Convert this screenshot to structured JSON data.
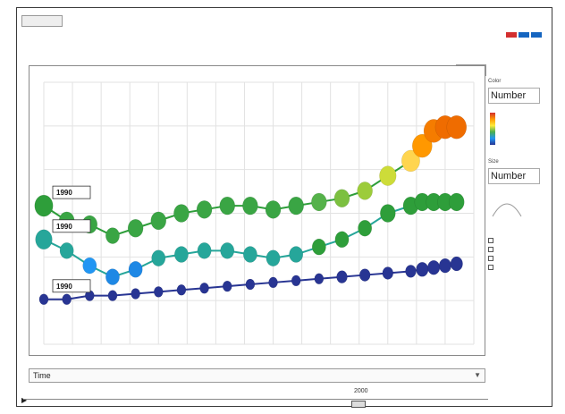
{
  "app": {
    "top_button": "",
    "title_arabic": "",
    "tools_button": "",
    "flag_colors": [
      "#d32f2f",
      "#1565c0",
      "#1565c0"
    ]
  },
  "side_panel": {
    "color_label": "Color",
    "color_value": "Number",
    "size_label": "Size",
    "size_value": "Number",
    "legend_high": "",
    "legend_mid": "",
    "checkboxes": []
  },
  "time_control": {
    "x_axis_select": "Time",
    "current_year": "2000"
  },
  "chart_data": {
    "type": "scatter",
    "title": "",
    "xlabel": "",
    "ylabel": "",
    "x_ticks": [
      "",
      "",
      "",
      "",
      "",
      "",
      "",
      "",
      "",
      "",
      "",
      "",
      "",
      "",
      "",
      ""
    ],
    "y_ticks": [
      "",
      "",
      "",
      "",
      "",
      "",
      ""
    ],
    "xlim": [
      0,
      15
    ],
    "ylim": [
      0,
      7
    ],
    "grid": true,
    "series": [
      {
        "name": "",
        "label_tag": "1990",
        "x": [
          0,
          0.8,
          1.6,
          2.4,
          3.2,
          4.0,
          4.8,
          5.6,
          6.4,
          7.2,
          8.0,
          8.8,
          9.6,
          10.4,
          11.2,
          12.0,
          12.8,
          13.2,
          13.6,
          14.0,
          14.4
        ],
        "y": [
          3.7,
          3.3,
          3.2,
          2.9,
          3.1,
          3.3,
          3.5,
          3.6,
          3.7,
          3.7,
          3.6,
          3.7,
          3.8,
          3.9,
          4.1,
          4.5,
          4.9,
          5.3,
          5.7,
          5.8,
          5.8
        ],
        "colors": [
          "#2e9e3a",
          "#3aa544",
          "#3aa544",
          "#3aa544",
          "#3aa544",
          "#3aa544",
          "#3aa544",
          "#3aa544",
          "#3aa544",
          "#3aa544",
          "#3aa544",
          "#3aa544",
          "#55b24a",
          "#7cc040",
          "#9ccc3a",
          "#cddc39",
          "#ffd54f",
          "#ff9800",
          "#f57c00",
          "#ef6c00",
          "#ef6c00"
        ]
      },
      {
        "name": "",
        "label_tag": "1990",
        "x": [
          0,
          0.8,
          1.6,
          2.4,
          3.2,
          4.0,
          4.8,
          5.6,
          6.4,
          7.2,
          8.0,
          8.8,
          9.6,
          10.4,
          11.2,
          12.0,
          12.8,
          13.2,
          13.6,
          14.0,
          14.4
        ],
        "y": [
          2.8,
          2.5,
          2.1,
          1.8,
          2.0,
          2.3,
          2.4,
          2.5,
          2.5,
          2.4,
          2.3,
          2.4,
          2.6,
          2.8,
          3.1,
          3.5,
          3.7,
          3.8,
          3.8,
          3.8,
          3.8
        ],
        "colors": [
          "#26a69a",
          "#26a69a",
          "#2196f3",
          "#1e88e5",
          "#1e88e5",
          "#26a69a",
          "#26a69a",
          "#26a69a",
          "#26a69a",
          "#26a69a",
          "#26a69a",
          "#26a69a",
          "#2e9e3a",
          "#2e9e3a",
          "#2e9e3a",
          "#2e9e3a",
          "#2e9e3a",
          "#2e9e3a",
          "#2e9e3a",
          "#2e9e3a",
          "#2e9e3a"
        ]
      },
      {
        "name": "",
        "label_tag": "1990",
        "x": [
          0,
          0.8,
          1.6,
          2.4,
          3.2,
          4.0,
          4.8,
          5.6,
          6.4,
          7.2,
          8.0,
          8.8,
          9.6,
          10.4,
          11.2,
          12.0,
          12.8,
          13.2,
          13.6,
          14.0,
          14.4
        ],
        "y": [
          1.2,
          1.2,
          1.3,
          1.3,
          1.35,
          1.4,
          1.45,
          1.5,
          1.55,
          1.6,
          1.65,
          1.7,
          1.75,
          1.8,
          1.85,
          1.9,
          1.95,
          2.0,
          2.05,
          2.1,
          2.15
        ],
        "colors": [
          "#283593",
          "#283593",
          "#283593",
          "#283593",
          "#283593",
          "#283593",
          "#283593",
          "#283593",
          "#283593",
          "#283593",
          "#283593",
          "#283593",
          "#283593",
          "#283593",
          "#283593",
          "#283593",
          "#283593",
          "#283593",
          "#283593",
          "#283593",
          "#283593"
        ]
      }
    ],
    "marker_sizes": [
      [
        12,
        10,
        10,
        9,
        10,
        10,
        10,
        10,
        10,
        10,
        10,
        10,
        10,
        10,
        10,
        11,
        12,
        13,
        13,
        13,
        13
      ],
      [
        11,
        9,
        9,
        9,
        9,
        9,
        9,
        9,
        9,
        9,
        9,
        9,
        9,
        9,
        9,
        10,
        10,
        10,
        10,
        10,
        10
      ],
      [
        6,
        6,
        6,
        6,
        6,
        6,
        6,
        6,
        6,
        6,
        6,
        6,
        6,
        7,
        7,
        7,
        7,
        8,
        8,
        8,
        8
      ]
    ]
  }
}
